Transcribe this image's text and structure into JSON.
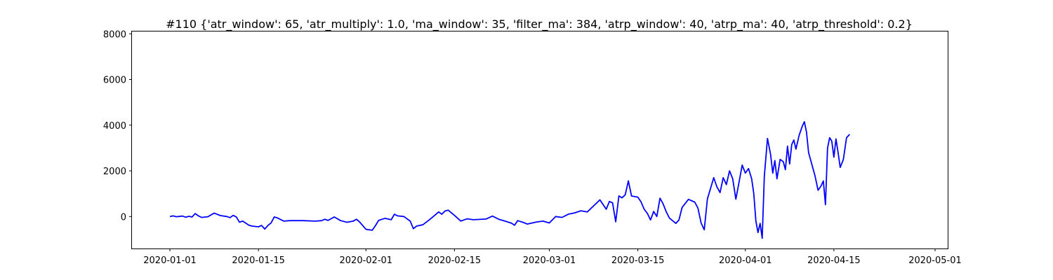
{
  "chart_data": {
    "type": "line",
    "title": "#110 {'atr_window': 65, 'atr_multiply': 1.0, 'ma_window': 35, 'filter_ma': 384, 'atrp_window': 40, 'atrp_ma': 40, 'atrp_threshold': 0.2}",
    "xlabel": "",
    "ylabel": "",
    "xlim": [
      "2019-12-26",
      "2020-05-03"
    ],
    "ylim": [
      -1400,
      8100
    ],
    "x_ticks": [
      "2020-01-01",
      "2020-01-15",
      "2020-02-01",
      "2020-02-15",
      "2020-03-01",
      "2020-03-15",
      "2020-04-01",
      "2020-04-15",
      "2020-05-01"
    ],
    "y_ticks": [
      0,
      2000,
      4000,
      6000,
      8000
    ],
    "grid": false,
    "legend": "none",
    "series": [
      {
        "color": "#0000ff",
        "points": [
          [
            "2020-01-01",
            0
          ],
          [
            "2020-01-01",
            30
          ],
          [
            "2020-01-02",
            -10
          ],
          [
            "2020-01-03",
            20
          ],
          [
            "2020-01-03",
            -30
          ],
          [
            "2020-01-04",
            10
          ],
          [
            "2020-01-04",
            -20
          ],
          [
            "2020-01-05",
            130
          ],
          [
            "2020-01-05",
            30
          ],
          [
            "2020-01-06",
            -40
          ],
          [
            "2020-01-07",
            -10
          ],
          [
            "2020-01-08",
            150
          ],
          [
            "2020-01-09",
            40
          ],
          [
            "2020-01-10",
            0
          ],
          [
            "2020-01-10",
            -50
          ],
          [
            "2020-01-11",
            50
          ],
          [
            "2020-01-11",
            -20
          ],
          [
            "2020-01-12",
            -250
          ],
          [
            "2020-01-12",
            -200
          ],
          [
            "2020-01-13",
            -290
          ],
          [
            "2020-01-13",
            -380
          ],
          [
            "2020-01-14",
            -420
          ],
          [
            "2020-01-15",
            -450
          ],
          [
            "2020-01-15",
            -390
          ],
          [
            "2020-01-16",
            -550
          ],
          [
            "2020-01-16",
            -390
          ],
          [
            "2020-01-17",
            -280
          ],
          [
            "2020-01-17",
            -20
          ],
          [
            "2020-01-18",
            -60
          ],
          [
            "2020-01-19",
            -200
          ],
          [
            "2020-01-20",
            -180
          ],
          [
            "2020-01-22",
            -180
          ],
          [
            "2020-01-24",
            -200
          ],
          [
            "2020-01-25",
            -180
          ],
          [
            "2020-01-25",
            -120
          ],
          [
            "2020-01-26",
            -170
          ],
          [
            "2020-01-27",
            -20
          ],
          [
            "2020-01-28",
            -180
          ],
          [
            "2020-01-29",
            -250
          ],
          [
            "2020-01-30",
            -200
          ],
          [
            "2020-01-30",
            -120
          ],
          [
            "2020-01-31",
            -240
          ],
          [
            "2020-02-01",
            -560
          ],
          [
            "2020-02-02",
            -600
          ],
          [
            "2020-02-02",
            -400
          ],
          [
            "2020-02-03",
            -170
          ],
          [
            "2020-02-04",
            -80
          ],
          [
            "2020-02-05",
            -140
          ],
          [
            "2020-02-05",
            100
          ],
          [
            "2020-02-06",
            30
          ],
          [
            "2020-02-07",
            0
          ],
          [
            "2020-02-08",
            -200
          ],
          [
            "2020-02-08",
            -530
          ],
          [
            "2020-02-09",
            -420
          ],
          [
            "2020-02-10",
            -360
          ],
          [
            "2020-02-11",
            -150
          ],
          [
            "2020-02-12",
            80
          ],
          [
            "2020-02-12",
            200
          ],
          [
            "2020-02-13",
            100
          ],
          [
            "2020-02-13",
            240
          ],
          [
            "2020-02-14",
            280
          ],
          [
            "2020-02-15",
            50
          ],
          [
            "2020-02-16",
            -200
          ],
          [
            "2020-02-17",
            -100
          ],
          [
            "2020-02-18",
            -140
          ],
          [
            "2020-02-20",
            -110
          ],
          [
            "2020-02-21",
            20
          ],
          [
            "2020-02-22",
            -120
          ],
          [
            "2020-02-23",
            -200
          ],
          [
            "2020-02-24",
            -290
          ],
          [
            "2020-02-24",
            -380
          ],
          [
            "2020-02-25",
            -180
          ],
          [
            "2020-02-26",
            -270
          ],
          [
            "2020-02-26",
            -330
          ],
          [
            "2020-02-28",
            -240
          ],
          [
            "2020-02-29",
            -200
          ],
          [
            "2020-03-01",
            -280
          ],
          [
            "2020-03-02",
            0
          ],
          [
            "2020-03-03",
            -40
          ],
          [
            "2020-03-04",
            100
          ],
          [
            "2020-03-05",
            160
          ],
          [
            "2020-03-06",
            250
          ],
          [
            "2020-03-07",
            200
          ],
          [
            "2020-03-09",
            730
          ],
          [
            "2020-03-10",
            320
          ],
          [
            "2020-03-10",
            660
          ],
          [
            "2020-03-11",
            600
          ],
          [
            "2020-03-11",
            -230
          ],
          [
            "2020-03-12",
            900
          ],
          [
            "2020-03-12",
            820
          ],
          [
            "2020-03-13",
            950
          ],
          [
            "2020-03-13",
            1560
          ],
          [
            "2020-03-14",
            900
          ],
          [
            "2020-03-15",
            850
          ],
          [
            "2020-03-15",
            640
          ],
          [
            "2020-03-16",
            320
          ],
          [
            "2020-03-16",
            140
          ],
          [
            "2020-03-17",
            -150
          ],
          [
            "2020-03-17",
            220
          ],
          [
            "2020-03-18",
            0
          ],
          [
            "2020-03-18",
            800
          ],
          [
            "2020-03-19",
            550
          ],
          [
            "2020-03-19",
            200
          ],
          [
            "2020-03-20",
            -70
          ],
          [
            "2020-03-21",
            -300
          ],
          [
            "2020-03-21",
            -150
          ],
          [
            "2020-03-22",
            400
          ],
          [
            "2020-03-23",
            750
          ],
          [
            "2020-03-24",
            630
          ],
          [
            "2020-03-24",
            370
          ],
          [
            "2020-03-25",
            -280
          ],
          [
            "2020-03-25",
            -580
          ],
          [
            "2020-03-26",
            770
          ],
          [
            "2020-03-27",
            1700
          ],
          [
            "2020-03-27",
            1300
          ],
          [
            "2020-03-28",
            1050
          ],
          [
            "2020-03-28",
            1700
          ],
          [
            "2020-03-29",
            1400
          ],
          [
            "2020-03-29",
            2000
          ],
          [
            "2020-03-30",
            1650
          ],
          [
            "2020-03-30",
            760
          ],
          [
            "2020-03-31",
            1500
          ],
          [
            "2020-03-31",
            2250
          ],
          [
            "2020-04-01",
            1900
          ],
          [
            "2020-04-01",
            2100
          ],
          [
            "2020-04-02",
            1650
          ],
          [
            "2020-04-02",
            1000
          ],
          [
            "2020-04-02",
            -200
          ],
          [
            "2020-04-03",
            -700
          ],
          [
            "2020-04-03",
            -300
          ],
          [
            "2020-04-03",
            -950
          ],
          [
            "2020-04-04",
            1760
          ],
          [
            "2020-04-04",
            3420
          ],
          [
            "2020-04-05",
            2700
          ],
          [
            "2020-04-05",
            1900
          ],
          [
            "2020-04-05",
            2450
          ],
          [
            "2020-04-06",
            1650
          ],
          [
            "2020-04-06",
            2500
          ],
          [
            "2020-04-07",
            2400
          ],
          [
            "2020-04-07",
            2050
          ],
          [
            "2020-04-07",
            3080
          ],
          [
            "2020-04-08",
            2300
          ],
          [
            "2020-04-08",
            3150
          ],
          [
            "2020-04-08",
            3350
          ],
          [
            "2020-04-09",
            2950
          ],
          [
            "2020-04-09",
            3550
          ],
          [
            "2020-04-10",
            3950
          ],
          [
            "2020-04-10",
            4150
          ],
          [
            "2020-04-10",
            3700
          ],
          [
            "2020-04-11",
            2800
          ],
          [
            "2020-04-12",
            1800
          ],
          [
            "2020-04-12",
            1150
          ],
          [
            "2020-04-13",
            1350
          ],
          [
            "2020-04-13",
            1560
          ],
          [
            "2020-04-13",
            520
          ],
          [
            "2020-04-14",
            3000
          ],
          [
            "2020-04-14",
            3450
          ],
          [
            "2020-04-14",
            3300
          ],
          [
            "2020-04-15",
            2600
          ],
          [
            "2020-04-15",
            3400
          ],
          [
            "2020-04-15",
            2800
          ],
          [
            "2020-04-16",
            2150
          ],
          [
            "2020-04-16",
            2500
          ],
          [
            "2020-04-17",
            3450
          ],
          [
            "2020-04-17",
            3600
          ]
        ]
      }
    ]
  }
}
